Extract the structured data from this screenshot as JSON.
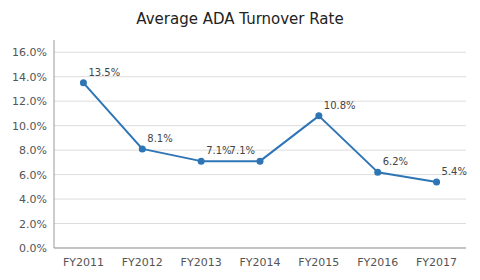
{
  "chart_data": {
    "type": "line",
    "title": "Average ADA Turnover Rate",
    "categories": [
      "FY2011",
      "FY2012",
      "FY2013",
      "FY2014",
      "FY2015",
      "FY2016",
      "FY2017"
    ],
    "values": [
      13.5,
      8.1,
      7.1,
      7.1,
      10.8,
      6.2,
      5.4
    ],
    "value_labels": [
      "13.5%",
      "8.1%",
      "7.1%",
      "7.1%",
      "10.8%",
      "6.2%",
      "5.4%"
    ],
    "color": "#2E75B6",
    "marker": "circle",
    "ylim": [
      0,
      17
    ],
    "yticks": [
      {
        "value": 0,
        "label": "0.0%"
      },
      {
        "value": 2,
        "label": "2.0%"
      },
      {
        "value": 4,
        "label": "4.0%"
      },
      {
        "value": 6,
        "label": "6.0%"
      },
      {
        "value": 8,
        "label": "8.0%"
      },
      {
        "value": 10,
        "label": "10.0%"
      },
      {
        "value": 12,
        "label": "12.0%"
      },
      {
        "value": 14,
        "label": "14.0%"
      },
      {
        "value": 16,
        "label": "16.0%"
      }
    ],
    "grid": true,
    "data_labels": true
  }
}
